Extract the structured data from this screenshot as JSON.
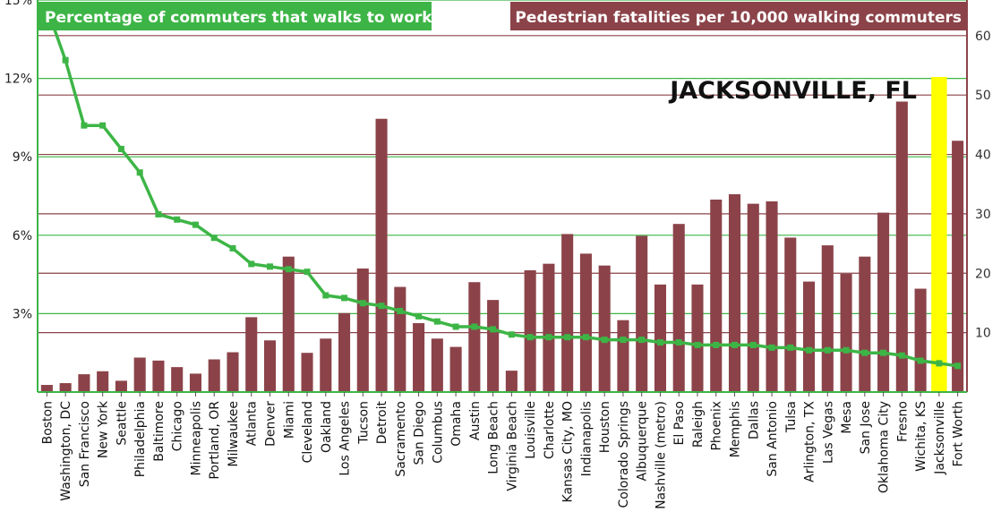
{
  "colors": {
    "green": "#3db546",
    "maroon": "#8b4349",
    "highlight": "#ffff00",
    "label": "#111111"
  },
  "chart_data": {
    "type": "bar",
    "title_left": "Percentage of commuters that walks to work",
    "title_right": "Pedestrian fatalities per 10,000 walking commuters",
    "highlight_label": "JACKSONVILLE, FL",
    "highlight_category": "Jacksonville",
    "grid": true,
    "left_axis": {
      "ylim": [
        0,
        15
      ],
      "ticks": [
        "3%",
        "6%",
        "9%",
        "12%",
        "15%"
      ],
      "tick_values": [
        3,
        6,
        9,
        12,
        15
      ]
    },
    "right_axis": {
      "ylim": [
        0,
        66
      ],
      "ticks": [
        "10",
        "20",
        "30",
        "40",
        "50",
        "60"
      ],
      "tick_values": [
        10,
        20,
        30,
        40,
        50,
        60
      ]
    },
    "categories": [
      "Boston",
      "Washington, DC",
      "San Francisco",
      "New York",
      "Seattle",
      "Philadelphia",
      "Baltimore",
      "Chicago",
      "Minneapolis",
      "Portland, OR",
      "Milwaukee",
      "Atlanta",
      "Denver",
      "Miami",
      "Cleveland",
      "Oakland",
      "Los Angeles",
      "Tucson",
      "Detroit",
      "Sacramento",
      "San Diego",
      "Columbus",
      "Omaha",
      "Austin",
      "Long Beach",
      "Virginia Beach",
      "Louisville",
      "Charlotte",
      "Kansas City, MO",
      "Indianapolis",
      "Houston",
      "Colorado Springs",
      "Albuquerque",
      "Nashville (metro)",
      "El Paso",
      "Raleigh",
      "Phoenix",
      "Memphis",
      "Dallas",
      "San Antonio",
      "Tulsa",
      "Arlington, TX",
      "Las Vegas",
      "Mesa",
      "San Jose",
      "Oklahoma City",
      "Fresno",
      "Wichita, KS",
      "Jacksonville",
      "Fort Worth"
    ],
    "series": [
      {
        "name": "Pedestrian fatalities per 10,000 walking commuters",
        "type": "bar",
        "axis": "right",
        "values": [
          1.2,
          1.5,
          3.0,
          3.5,
          1.9,
          5.8,
          5.3,
          4.2,
          3.1,
          5.5,
          6.7,
          12.6,
          8.7,
          22.8,
          6.6,
          9.0,
          13.3,
          20.8,
          46.0,
          17.7,
          11.6,
          9.0,
          7.6,
          18.5,
          15.5,
          3.6,
          20.5,
          21.6,
          26.6,
          23.3,
          21.3,
          12.1,
          26.3,
          18.1,
          28.3,
          18.1,
          32.4,
          33.3,
          31.7,
          32.1,
          26.0,
          18.6,
          24.7,
          19.9,
          22.8,
          30.2,
          48.9,
          17.4,
          52.8,
          42.3
        ]
      },
      {
        "name": "Percentage of commuters that walks to work",
        "type": "line",
        "axis": "left",
        "values": [
          14.7,
          12.7,
          10.2,
          10.2,
          9.3,
          8.4,
          6.8,
          6.6,
          6.4,
          5.9,
          5.5,
          4.9,
          4.8,
          4.7,
          4.6,
          3.7,
          3.6,
          3.4,
          3.3,
          3.1,
          2.9,
          2.7,
          2.5,
          2.5,
          2.4,
          2.2,
          2.1,
          2.1,
          2.1,
          2.1,
          2.0,
          2.0,
          2.0,
          1.9,
          1.9,
          1.8,
          1.8,
          1.8,
          1.8,
          1.7,
          1.7,
          1.6,
          1.6,
          1.6,
          1.5,
          1.5,
          1.4,
          1.2,
          1.1,
          1.0
        ]
      }
    ]
  }
}
